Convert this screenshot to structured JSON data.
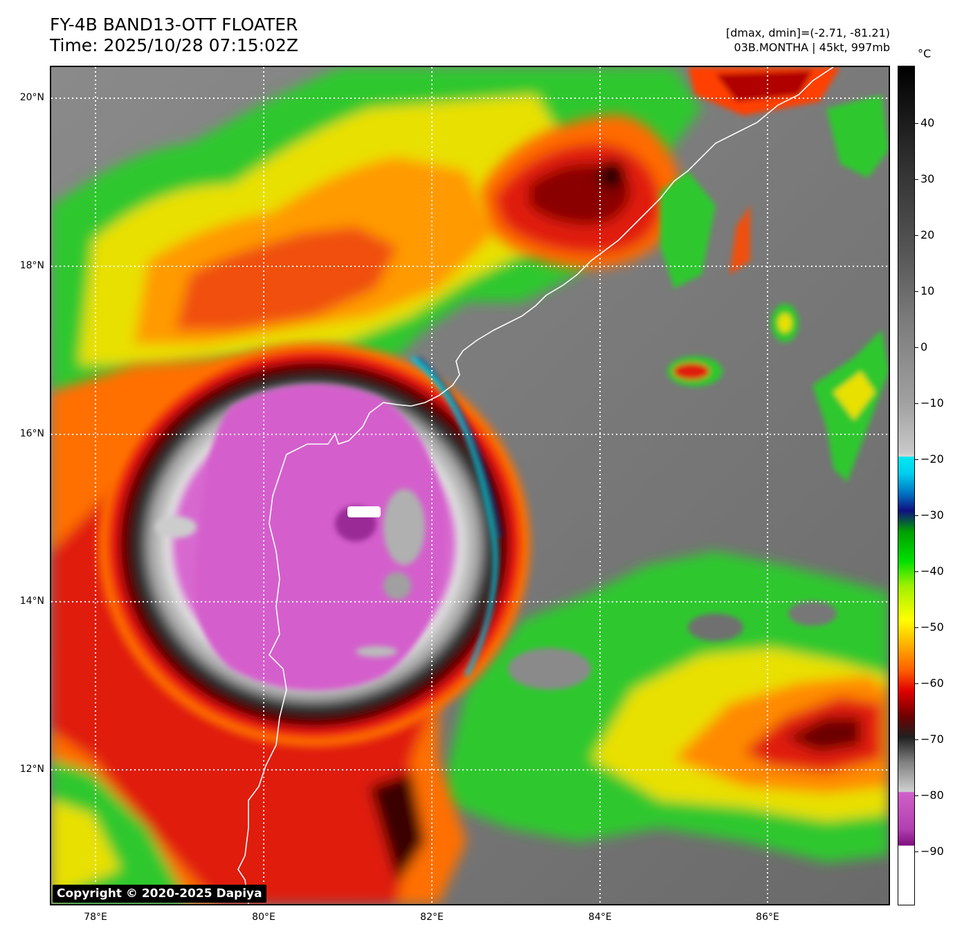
{
  "title": {
    "line1": "FY-4B BAND13-OTT FLOATER",
    "line2": "Time: 2025/10/28 07:15:02Z"
  },
  "info": {
    "line1": "[dmax, dmin]=(-2.71, -81.21)",
    "line2": "03B.MONTHA | 45kt, 997mb"
  },
  "colorbar": {
    "unit": "°C",
    "ticks": [
      "40",
      "30",
      "20",
      "10",
      "0",
      "−10",
      "−20",
      "−30",
      "−40",
      "−50",
      "−60",
      "−70",
      "−80",
      "−90"
    ]
  },
  "map": {
    "lat_labels": [
      "20°N",
      "18°N",
      "16°N",
      "14°N",
      "12°N"
    ],
    "lon_labels": [
      "78°E",
      "80°E",
      "82°E",
      "84°E",
      "86°E"
    ],
    "copyright": "Copyright © 2020-2025 Dapiya"
  }
}
